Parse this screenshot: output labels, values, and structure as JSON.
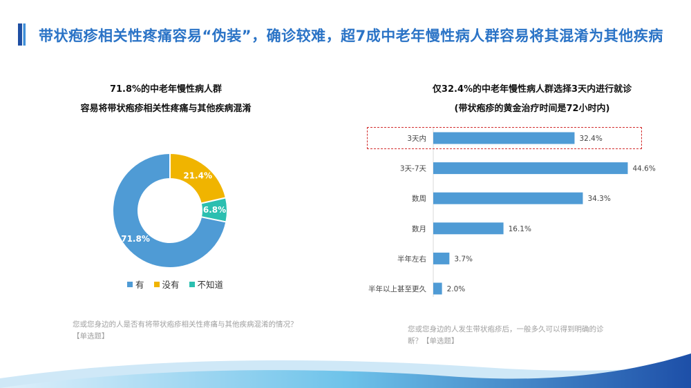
{
  "header": {
    "title": "带状疱疹相关性疼痛容易“伪装”，确诊较难，超7成中老年慢性病人群容易将其混淆为其他疾病"
  },
  "colors": {
    "blue": "#4f9bd5",
    "yellow": "#f0b400",
    "teal": "#2bbfb0",
    "title_blue": "#2a73c6"
  },
  "left": {
    "title_line1": "71.8%的中老年慢性病人群",
    "title_line2": "容易将带状疱疹相关性疼痛与其他疾病混淆",
    "footnote_line1": "您或您身边的人是否有将带状疱疹相关性疼痛与其他疾病混淆的情况？",
    "footnote_line2": "【单选题】"
  },
  "right": {
    "title_line1": "仅32.4%的中老年慢性病人群选择3天内进行就诊",
    "title_line2": "(带状疱疹的黄金治疗时间是72小时内)",
    "footnote_line1": "您或您身边的人发生带状疱疹后，一般多久可以得到明确的诊",
    "footnote_line2": "断？【单选题】"
  },
  "chart_data": [
    {
      "type": "pie",
      "categories": [
        "有",
        "没有",
        "不知道"
      ],
      "values": [
        71.8,
        21.4,
        6.8
      ],
      "data_labels": [
        "71.8%",
        "21.4%",
        "6.8%"
      ],
      "colors": [
        "#4f9bd5",
        "#f0b400",
        "#2bbfb0"
      ],
      "legend": "bottom",
      "donut": true
    },
    {
      "type": "bar",
      "orientation": "horizontal",
      "categories": [
        "3天内",
        "3天-7天",
        "数周",
        "数月",
        "半年左右",
        "半年以上甚至更久"
      ],
      "values": [
        32.4,
        44.6,
        34.3,
        16.1,
        3.7,
        2.0
      ],
      "data_labels": [
        "32.4%",
        "44.6%",
        "34.3%",
        "16.1%",
        "3.7%",
        "2.0%"
      ],
      "color": "#4f9bd5",
      "highlighted_category": "3天内",
      "grid": false
    }
  ]
}
